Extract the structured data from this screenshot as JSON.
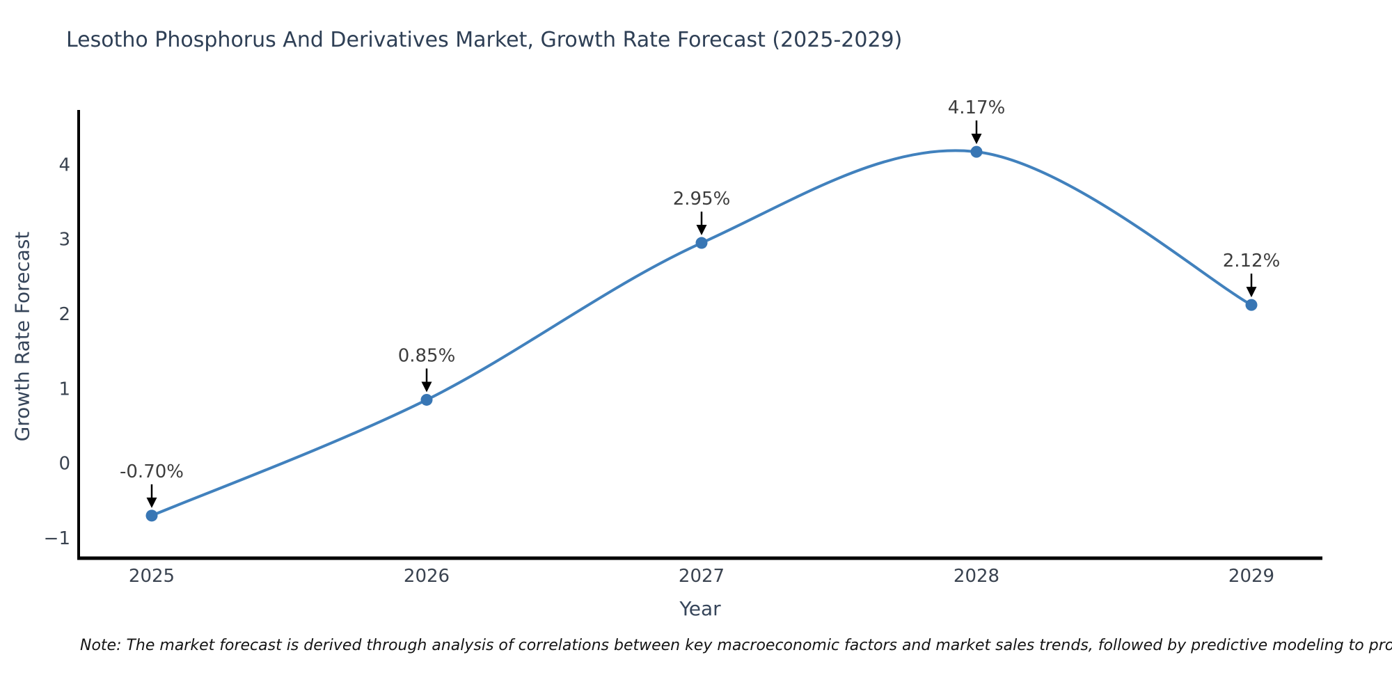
{
  "chart_data": {
    "type": "line",
    "title": "Lesotho Phosphorus And Derivatives Market, Growth Rate Forecast (2025-2029)",
    "xlabel": "Year",
    "ylabel": "Growth Rate Forecast",
    "categories": [
      "2025",
      "2026",
      "2027",
      "2028",
      "2029"
    ],
    "series": [
      {
        "name": "Growth Rate Forecast",
        "values": [
          -0.7,
          0.85,
          2.95,
          4.17,
          2.12
        ],
        "point_labels": [
          "-0.70%",
          "0.85%",
          "2.95%",
          "4.17%",
          "2.12%"
        ]
      }
    ],
    "ylim": [
      -1.27,
      4.73
    ],
    "yticks": [
      4,
      3,
      2,
      1,
      0,
      -1
    ],
    "ytick_labels": [
      "4",
      "3",
      "2",
      "1",
      "0",
      "−1"
    ],
    "grid": false,
    "legend": "none",
    "line_color": "#4181bd",
    "marker_color": "#3876b4",
    "axis_color": "#000000",
    "tick_color": "#3a4350",
    "annotation_color": "#3d3d3d",
    "note": "Note: The market forecast is derived through analysis of correlations between key macroeconomic factors and market sales trends, followed by predictive modeling to project future sales"
  }
}
